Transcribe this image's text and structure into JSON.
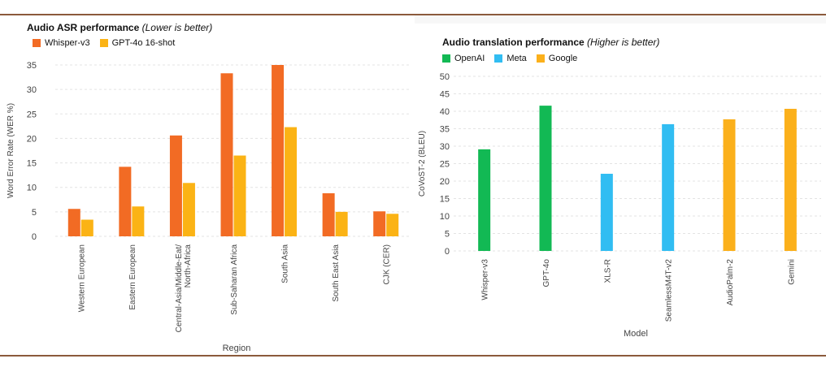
{
  "colors": {
    "whisper": "#f26b24",
    "gpt4o": "#fbb315",
    "openai": "#12b954",
    "meta": "#31bdf2",
    "google": "#fbb01b",
    "grid": "#e3e3e3",
    "rule": "#8b5a3c"
  },
  "chart_data": [
    {
      "type": "bar",
      "title": "Audio ASR performance",
      "subtitle": "(Lower is better)",
      "xlabel": "Region",
      "ylabel": "Word Error Rate (WER %)",
      "ylim": [
        0,
        35
      ],
      "yticks": [
        "0",
        "5",
        "10",
        "15",
        "20",
        "25",
        "30",
        "35"
      ],
      "categories": [
        "Western European",
        "Eastern European",
        "Central-Asia/Middle-Eat/\nNorth-Africa",
        "Sub-Saharan Africa",
        "South Asia",
        "South East Asia",
        "CJK (CER)"
      ],
      "series": [
        {
          "name": "Whisper-v3",
          "color_key": "whisper",
          "values": [
            5.6,
            14.2,
            20.6,
            33.3,
            35.0,
            8.8,
            5.1
          ]
        },
        {
          "name": "GPT-4o 16-shot",
          "color_key": "gpt4o",
          "values": [
            3.4,
            6.1,
            10.9,
            16.5,
            22.3,
            5.0,
            4.6
          ]
        }
      ]
    },
    {
      "type": "bar",
      "title": "Audio translation performance",
      "subtitle": "(Higher is better)",
      "xlabel": "Model",
      "ylabel": "CoVoST-2 (BLEU)",
      "ylim": [
        0,
        50
      ],
      "yticks": [
        "0",
        "5",
        "10",
        "15",
        "20",
        "25",
        "30",
        "35",
        "40",
        "45",
        "50"
      ],
      "legend": [
        {
          "name": "OpenAI",
          "color_key": "openai"
        },
        {
          "name": "Meta",
          "color_key": "meta"
        },
        {
          "name": "Google",
          "color_key": "google"
        }
      ],
      "categories": [
        "Whisper-v3",
        "GPT-4o",
        "XLS-R",
        "SeamlessM4T-v2",
        "AudioPalm-2",
        "Gemini"
      ],
      "values": [
        29.1,
        41.6,
        22.1,
        36.3,
        37.7,
        40.7
      ],
      "color_keys": [
        "openai",
        "openai",
        "meta",
        "meta",
        "google",
        "google"
      ]
    }
  ]
}
